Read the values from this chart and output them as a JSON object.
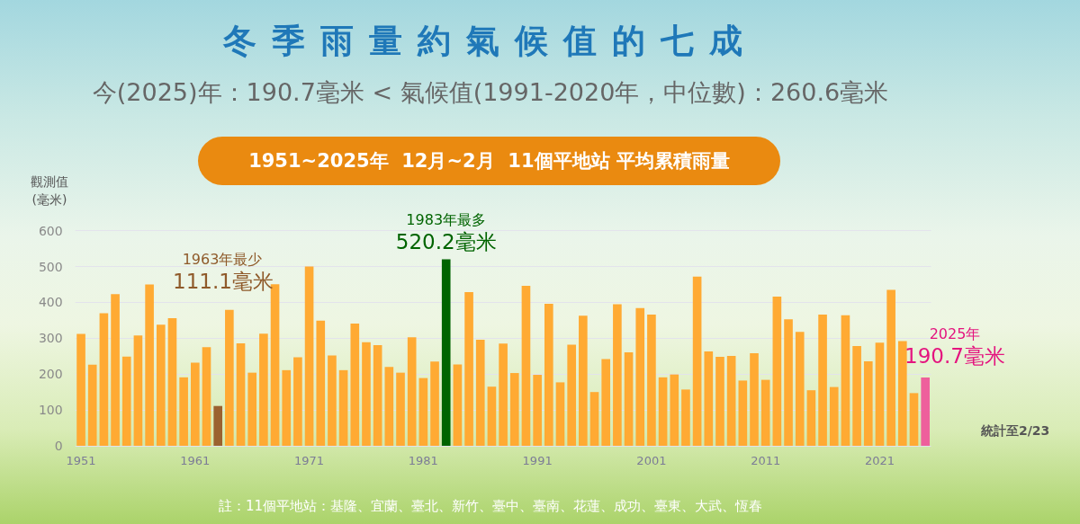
{
  "chart_data": {
    "type": "bar",
    "title": "冬季雨量約氣候值的七成",
    "subtitle": "今(2025)年：190.7毫米 < 氣候值(1991-2020年，中位數)：260.6毫米",
    "ylabel": "觀測值\n(毫米)",
    "categories": [
      "1951",
      null,
      null,
      null,
      null,
      null,
      null,
      null,
      null,
      null,
      "1961",
      null,
      null,
      null,
      null,
      null,
      null,
      null,
      null,
      null,
      "1971",
      null,
      null,
      null,
      null,
      null,
      null,
      null,
      null,
      null,
      "1981",
      null,
      null,
      null,
      null,
      null,
      null,
      null,
      null,
      null,
      "1991",
      null,
      null,
      null,
      null,
      null,
      null,
      null,
      null,
      null,
      "2001",
      null,
      null,
      null,
      null,
      null,
      null,
      null,
      null,
      null,
      "2011",
      null,
      null,
      null,
      null,
      null,
      null,
      null,
      null,
      null,
      "2021",
      null,
      null,
      null,
      null
    ],
    "values": [
      312,
      226,
      370,
      423,
      249,
      308,
      450,
      338,
      356,
      191,
      232,
      275,
      111.1,
      379,
      286,
      204,
      313,
      451,
      211,
      247,
      500,
      349,
      252,
      211,
      341,
      289,
      281,
      220,
      204,
      303,
      189,
      235,
      520.2,
      227,
      429,
      296,
      165,
      285,
      203,
      446,
      198,
      396,
      177,
      282,
      363,
      150,
      242,
      395,
      261,
      384,
      366,
      191,
      199,
      157,
      472,
      263,
      248,
      251,
      182,
      258,
      184,
      416,
      353,
      318,
      155,
      366,
      164,
      364,
      278,
      236,
      288,
      435,
      292,
      147,
      190.7
    ],
    "colors": [
      "#ffaa33",
      "#ffaa33",
      "#ffaa33",
      "#ffaa33",
      "#ffaa33",
      "#ffaa33",
      "#ffaa33",
      "#ffaa33",
      "#ffaa33",
      "#ffaa33",
      "#ffaa33",
      "#ffaa33",
      "#9b6230",
      "#ffaa33",
      "#ffaa33",
      "#ffaa33",
      "#ffaa33",
      "#ffaa33",
      "#ffaa33",
      "#ffaa33",
      "#ffaa33",
      "#ffaa33",
      "#ffaa33",
      "#ffaa33",
      "#ffaa33",
      "#ffaa33",
      "#ffaa33",
      "#ffaa33",
      "#ffaa33",
      "#ffaa33",
      "#ffaa33",
      "#ffaa33",
      "#006400",
      "#ffaa33",
      "#ffaa33",
      "#ffaa33",
      "#ffaa33",
      "#ffaa33",
      "#ffaa33",
      "#ffaa33",
      "#ffaa33",
      "#ffaa33",
      "#ffaa33",
      "#ffaa33",
      "#ffaa33",
      "#ffaa33",
      "#ffaa33",
      "#ffaa33",
      "#ffaa33",
      "#ffaa33",
      "#ffaa33",
      "#ffaa33",
      "#ffaa33",
      "#ffaa33",
      "#ffaa33",
      "#ffaa33",
      "#ffaa33",
      "#ffaa33",
      "#ffaa33",
      "#ffaa33",
      "#ffaa33",
      "#ffaa33",
      "#ffaa33",
      "#ffaa33",
      "#ffaa33",
      "#ffaa33",
      "#ffaa33",
      "#ffaa33",
      "#ffaa33",
      "#ffaa33",
      "#ffaa33",
      "#ffaa33",
      "#ffaa33",
      "#ffaa33",
      "#ee5f9c"
    ],
    "value_labels": [
      null,
      null,
      null,
      null,
      null,
      null,
      null,
      null,
      null,
      null,
      null,
      null,
      null,
      null,
      null,
      null,
      null,
      null,
      null,
      null,
      null,
      null,
      null,
      null,
      null,
      null,
      null,
      null,
      null,
      null,
      null,
      null,
      "520.2毫米",
      null,
      null,
      null,
      null,
      null,
      null,
      null,
      null,
      null,
      null,
      null,
      null,
      null,
      null,
      null,
      null,
      null,
      null,
      null,
      null,
      null,
      null,
      null,
      null,
      null,
      null,
      null,
      null,
      null,
      null,
      null,
      null,
      null,
      null,
      null,
      null,
      null,
      null,
      null,
      null,
      null,
      null
    ],
    "annotations": [
      "1951~2025年  12月~2月  11個平地站 平均累積雨量",
      "1963年最少",
      "111.1毫米",
      {
        "text": "1983年最多",
        "y": 520.2
      },
      "2025年",
      "190.7毫米",
      "統計至2/23",
      "註：11個平地站：基隆、宜蘭、臺北、新竹、臺中、臺南、花蓮、成功、臺東、大武、恆春"
    ],
    "ylim": [
      0,
      600
    ],
    "yticks": [
      0,
      100,
      200,
      300,
      400,
      500,
      600
    ],
    "grid": "y"
  }
}
